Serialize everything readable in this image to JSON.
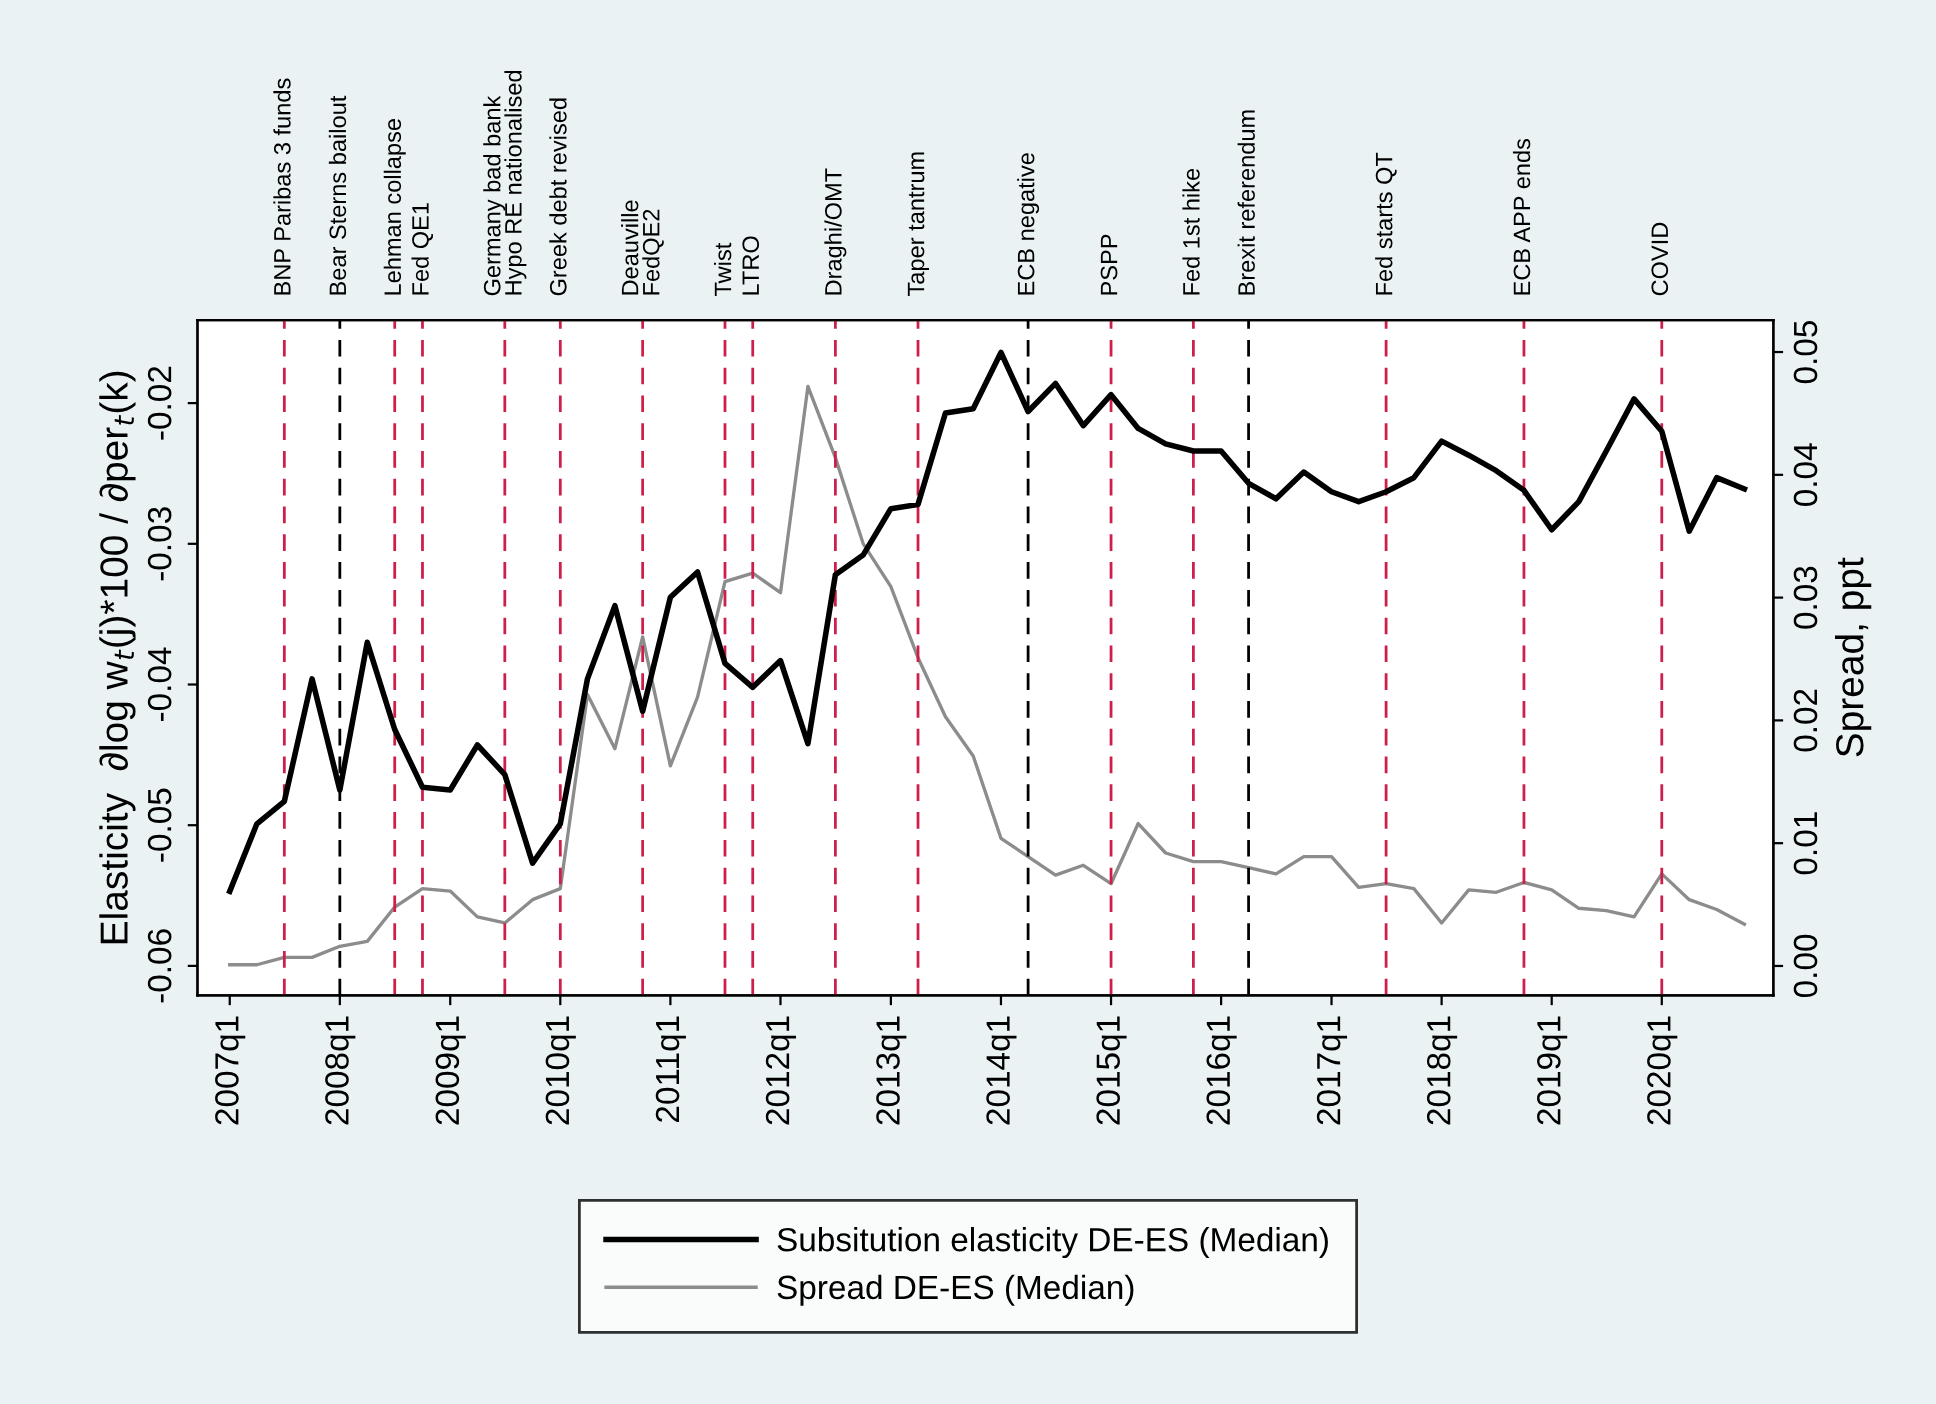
{
  "chart_data": {
    "type": "line",
    "ylabel": "Elasticity  ∂log w$_{t}$(j)*100 / ∂per$_{t}$(k)",
    "y2label": "Spread, ppt",
    "x": [
      "2007-01",
      "2007-04",
      "2007-07",
      "2007-10",
      "2008-01",
      "2008-04",
      "2008-07",
      "2008-10",
      "2009-01",
      "2009-04",
      "2009-07",
      "2009-10",
      "2010-01",
      "2010-04",
      "2010-07",
      "2010-10",
      "2011-01",
      "2011-04",
      "2011-07",
      "2011-10",
      "2012-01",
      "2012-04",
      "2012-07",
      "2012-10",
      "2013-01",
      "2013-04",
      "2013-07",
      "2013-10",
      "2014-01",
      "2014-04",
      "2014-07",
      "2014-10",
      "2015-01",
      "2015-04",
      "2015-07",
      "2015-10",
      "2016-01",
      "2016-04",
      "2016-07",
      "2016-10",
      "2017-01",
      "2017-04",
      "2017-07",
      "2017-10",
      "2018-01",
      "2018-04",
      "2018-07",
      "2018-10",
      "2019-01",
      "2019-04",
      "2019-07",
      "2019-10",
      "2020-01",
      "2020-04",
      "2020-07",
      "2020-10"
    ],
    "series": [
      {
        "name": "Subsitution elasticity DE-ES (Median)",
        "color": "#000000",
        "values": [
          -0.0547,
          -0.0499,
          -0.0483,
          -0.0396,
          -0.0475,
          -0.037,
          -0.0432,
          -0.0473,
          -0.0475,
          -0.0443,
          -0.0464,
          -0.0527,
          -0.0499,
          -0.0396,
          -0.0344,
          -0.0419,
          -0.0338,
          -0.032,
          -0.0385,
          -0.0402,
          -0.0383,
          -0.0442,
          -0.0322,
          -0.0308,
          -0.0275,
          -0.0272,
          -0.0207,
          -0.0204,
          -0.0164,
          -0.0206,
          -0.0186,
          -0.0216,
          -0.0194,
          -0.0218,
          -0.0229,
          -0.0234,
          -0.0234,
          -0.0257,
          -0.0268,
          -0.0249,
          -0.0263,
          -0.027,
          -0.0263,
          -0.0253,
          -0.0227,
          -0.0237,
          -0.0248,
          -0.0262,
          -0.029,
          -0.027,
          -0.0234,
          -0.0197,
          -0.022,
          -0.0291,
          -0.0253,
          -0.0261
        ]
      },
      {
        "name": "Spread DE-ES (Median)",
        "color": "#8c8c8c",
        "axis": "y2",
        "values": [
          0.0001,
          0.0001,
          0.0007,
          0.0007,
          0.0016,
          0.002,
          0.0048,
          0.0063,
          0.0061,
          0.004,
          0.0035,
          0.0054,
          0.0063,
          0.0221,
          0.0177,
          0.0268,
          0.0163,
          0.0219,
          0.0313,
          0.032,
          0.0304,
          0.0472,
          0.0414,
          0.0344,
          0.0309,
          0.0251,
          0.0203,
          0.0171,
          0.0104,
          0.0089,
          0.0074,
          0.0082,
          0.0067,
          0.0116,
          0.0092,
          0.0085,
          0.0085,
          0.008,
          0.0075,
          0.0089,
          0.0089,
          0.0064,
          0.0067,
          0.0063,
          0.0035,
          0.0062,
          0.006,
          0.0068,
          0.0062,
          0.0047,
          0.0045,
          0.004,
          0.0075,
          0.0054,
          0.0046,
          0.0034
        ]
      }
    ],
    "xlim": [
      "2006-09-16",
      "2021-01-05"
    ],
    "xticks": [
      {
        "value": "2007-01",
        "label": "2007q1"
      },
      {
        "value": "2008-01",
        "label": "2008q1"
      },
      {
        "value": "2009-01",
        "label": "2009q1"
      },
      {
        "value": "2010-01",
        "label": "2010q1"
      },
      {
        "value": "2011-01",
        "label": "2011q1"
      },
      {
        "value": "2012-01",
        "label": "2012q1"
      },
      {
        "value": "2013-01",
        "label": "2013q1"
      },
      {
        "value": "2014-01",
        "label": "2014q1"
      },
      {
        "value": "2015-01",
        "label": "2015q1"
      },
      {
        "value": "2016-01",
        "label": "2016q1"
      },
      {
        "value": "2017-01",
        "label": "2017q1"
      },
      {
        "value": "2018-01",
        "label": "2018q1"
      },
      {
        "value": "2019-01",
        "label": "2019q1"
      },
      {
        "value": "2020-01",
        "label": "2020q1"
      }
    ],
    "ylim": [
      -0.0621,
      -0.0141
    ],
    "yticks": [
      -0.06,
      -0.05,
      -0.04,
      -0.03,
      -0.02
    ],
    "y2lim": [
      -0.0024,
      0.0526
    ],
    "y2ticks": [
      {
        "value": 0,
        "label": "0.00"
      },
      {
        "value": 0.01,
        "label": "0.01"
      },
      {
        "value": 0.02,
        "label": "0.02"
      },
      {
        "value": 0.03,
        "label": "0.03"
      },
      {
        "value": 0.04,
        "label": "0.04"
      },
      {
        "value": 0.05,
        "label": "0.05"
      }
    ],
    "ref_lines": [
      {
        "axis": "x",
        "value": "2007-07",
        "label": "BNP Paribas 3 funds",
        "color": "#cc1f4a",
        "line_style": "dashed"
      },
      {
        "axis": "x",
        "value": "2008-01",
        "label": "Bear Sterns bailout",
        "color": "#000000",
        "line_style": "dashed"
      },
      {
        "axis": "x",
        "value": "2008-07",
        "label": "Lehman collapse",
        "color": "#cc1f4a",
        "line_style": "dashed"
      },
      {
        "axis": "x",
        "value": "2008-10",
        "label": "Fed QE1",
        "color": "#cc1f4a",
        "line_style": "dashed"
      },
      {
        "axis": "x",
        "value": "2009-07",
        "label": "Germany bad bank\nHypo RE nationalised",
        "color": "#cc1f4a",
        "line_style": "dashed"
      },
      {
        "axis": "x",
        "value": "2010-01",
        "label": "Greek debt revised",
        "color": "#cc1f4a",
        "line_style": "dashed"
      },
      {
        "axis": "x",
        "value": "2010-10",
        "label": "Deauville\nFedQE2",
        "color": "#cc1f4a",
        "line_style": "dashed"
      },
      {
        "axis": "x",
        "value": "2011-07",
        "label": "Twist",
        "color": "#cc1f4a",
        "line_style": "dashed"
      },
      {
        "axis": "x",
        "value": "2011-10",
        "label": "LTRO",
        "color": "#cc1f4a",
        "line_style": "dashed"
      },
      {
        "axis": "x",
        "value": "2012-07",
        "label": "Draghi/OMT",
        "color": "#cc1f4a",
        "line_style": "dashed"
      },
      {
        "axis": "x",
        "value": "2013-04",
        "label": "Taper tantrum",
        "color": "#cc1f4a",
        "line_style": "dashed"
      },
      {
        "axis": "x",
        "value": "2014-04",
        "label": "ECB negative",
        "color": "#000000",
        "line_style": "dashed"
      },
      {
        "axis": "x",
        "value": "2015-01",
        "label": "PSPP",
        "color": "#cc1f4a",
        "line_style": "dashed"
      },
      {
        "axis": "x",
        "value": "2015-10",
        "label": "Fed 1st hike",
        "color": "#cc1f4a",
        "line_style": "dashed"
      },
      {
        "axis": "x",
        "value": "2016-04",
        "label": "Brexit referendum",
        "color": "#000000",
        "line_style": "dashed"
      },
      {
        "axis": "x",
        "value": "2017-07",
        "label": "Fed starts QT",
        "color": "#cc1f4a",
        "line_style": "dashed"
      },
      {
        "axis": "x",
        "value": "2018-10",
        "label": "ECB APP ends",
        "color": "#cc1f4a",
        "line_style": "dashed"
      },
      {
        "axis": "x",
        "value": "2020-01",
        "label": "COVID",
        "color": "#cc1f4a",
        "line_style": "dashed"
      }
    ],
    "legend": "bottom",
    "grid": false,
    "marker": "none",
    "line_style": "solid"
  }
}
